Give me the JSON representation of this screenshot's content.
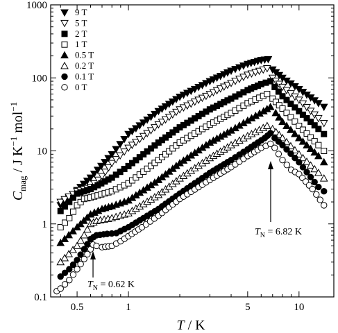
{
  "chart_data": {
    "type": "scatter",
    "x_scale": "log",
    "y_scale": "log",
    "xlim": [
      0.35,
      16
    ],
    "ylim": [
      0.1,
      1000
    ],
    "grid": false,
    "legend_position": "top-left",
    "x_ticks": [
      {
        "value": 0.5,
        "label": "0.5"
      },
      {
        "value": 1,
        "label": "1"
      },
      {
        "value": 5,
        "label": "5"
      },
      {
        "value": 10,
        "label": "10"
      }
    ],
    "y_ticks": [
      {
        "value": 0.1,
        "label": "0.1"
      },
      {
        "value": 1,
        "label": "1"
      },
      {
        "value": 10,
        "label": "10"
      },
      {
        "value": 100,
        "label": "100"
      },
      {
        "value": 1000,
        "label": "1000"
      }
    ],
    "xlabel": {
      "var": "T",
      "unit": " /  K"
    },
    "ylabel": {
      "var": "C",
      "sub": "mag",
      "unit1": " /  J K",
      "sup1": "−1",
      "unit2": " mol",
      "sup2": "−1"
    },
    "series": [
      {
        "name": "9 T",
        "marker": "tri-down",
        "filled": true,
        "points": [
          [
            0.4,
            1.8
          ],
          [
            0.5,
            2.9
          ],
          [
            0.6,
            4.3
          ],
          [
            0.8,
            9
          ],
          [
            1,
            17
          ],
          [
            1.5,
            35
          ],
          [
            2,
            55
          ],
          [
            3,
            90
          ],
          [
            4,
            125
          ],
          [
            5,
            155
          ],
          [
            6,
            175
          ],
          [
            6.6,
            180
          ],
          [
            7,
            130
          ],
          [
            8,
            100
          ],
          [
            10,
            70
          ],
          [
            13,
            45
          ],
          [
            14,
            40
          ]
        ]
      },
      {
        "name": "5 T",
        "marker": "tri-down",
        "filled": false,
        "points": [
          [
            0.4,
            2
          ],
          [
            0.5,
            2.8
          ],
          [
            0.6,
            3.2
          ],
          [
            0.7,
            4.5
          ],
          [
            0.8,
            6.8
          ],
          [
            1,
            11
          ],
          [
            1.5,
            23
          ],
          [
            2,
            37
          ],
          [
            3,
            60
          ],
          [
            4,
            85
          ],
          [
            5,
            110
          ],
          [
            6.5,
            135
          ],
          [
            7,
            100
          ],
          [
            8,
            75
          ],
          [
            10,
            50
          ],
          [
            13,
            28
          ],
          [
            14,
            24
          ]
        ]
      },
      {
        "name": "2 T",
        "marker": "square",
        "filled": true,
        "points": [
          [
            0.4,
            1.5
          ],
          [
            0.45,
            2
          ],
          [
            0.5,
            2.6
          ],
          [
            0.6,
            3
          ],
          [
            0.8,
            4.3
          ],
          [
            1,
            6.2
          ],
          [
            1.5,
            13
          ],
          [
            2,
            21
          ],
          [
            3,
            37
          ],
          [
            4,
            52
          ],
          [
            5,
            68
          ],
          [
            6,
            82
          ],
          [
            6.8,
            90
          ],
          [
            7.2,
            75
          ],
          [
            8,
            56
          ],
          [
            10,
            35
          ],
          [
            13,
            20
          ],
          [
            14,
            17
          ]
        ]
      },
      {
        "name": "1 T",
        "marker": "square",
        "filled": false,
        "points": [
          [
            0.4,
            0.9
          ],
          [
            0.45,
            1.2
          ],
          [
            0.5,
            1.8
          ],
          [
            0.55,
            2.2
          ],
          [
            0.6,
            2.3
          ],
          [
            0.8,
            2.8
          ],
          [
            1,
            3.6
          ],
          [
            1.5,
            7.5
          ],
          [
            2,
            13
          ],
          [
            3,
            23
          ],
          [
            4,
            33
          ],
          [
            5,
            45
          ],
          [
            6.5,
            60
          ],
          [
            7,
            52
          ],
          [
            8,
            38
          ],
          [
            10,
            22
          ],
          [
            13,
            12
          ],
          [
            14,
            10
          ]
        ]
      },
      {
        "name": "0.5 T",
        "marker": "tri-up",
        "filled": true,
        "points": [
          [
            0.4,
            0.55
          ],
          [
            0.5,
            0.9
          ],
          [
            0.6,
            1.35
          ],
          [
            0.7,
            1.6
          ],
          [
            0.8,
            1.75
          ],
          [
            1,
            2.1
          ],
          [
            1.5,
            4
          ],
          [
            2,
            6.8
          ],
          [
            3,
            13
          ],
          [
            4,
            19
          ],
          [
            5,
            26
          ],
          [
            6.2,
            35
          ],
          [
            6.8,
            40
          ],
          [
            7.3,
            33
          ],
          [
            8,
            25
          ],
          [
            10,
            15
          ],
          [
            13,
            8.5
          ],
          [
            14,
            7
          ]
        ]
      },
      {
        "name": "0.2 T",
        "marker": "tri-up",
        "filled": false,
        "points": [
          [
            0.4,
            0.3
          ],
          [
            0.5,
            0.5
          ],
          [
            0.55,
            0.7
          ],
          [
            0.6,
            1
          ],
          [
            0.65,
            1.1
          ],
          [
            0.8,
            1.2
          ],
          [
            1,
            1.4
          ],
          [
            1.5,
            2.5
          ],
          [
            2,
            4.2
          ],
          [
            3,
            8
          ],
          [
            4,
            12
          ],
          [
            5,
            16
          ],
          [
            6.5,
            22
          ],
          [
            7,
            20
          ],
          [
            8,
            15
          ],
          [
            10,
            9
          ],
          [
            13,
            5
          ],
          [
            14,
            4.2
          ]
        ]
      },
      {
        "name": "0.1 T",
        "marker": "circle",
        "filled": true,
        "points": [
          [
            0.4,
            0.19
          ],
          [
            0.45,
            0.24
          ],
          [
            0.5,
            0.32
          ],
          [
            0.55,
            0.45
          ],
          [
            0.6,
            0.62
          ],
          [
            0.65,
            0.7
          ],
          [
            0.75,
            0.73
          ],
          [
            0.85,
            0.75
          ],
          [
            1,
            0.9
          ],
          [
            1.5,
            1.6
          ],
          [
            2,
            2.6
          ],
          [
            3,
            5
          ],
          [
            4,
            7.5
          ],
          [
            5,
            10.5
          ],
          [
            6.3,
            15
          ],
          [
            6.8,
            17.5
          ],
          [
            7.2,
            15
          ],
          [
            8,
            12
          ],
          [
            10,
            7
          ],
          [
            13,
            3.2
          ],
          [
            14,
            2.8
          ]
        ]
      },
      {
        "name": "0 T",
        "marker": "circle",
        "filled": false,
        "points": [
          [
            0.38,
            0.12
          ],
          [
            0.4,
            0.13
          ],
          [
            0.45,
            0.17
          ],
          [
            0.5,
            0.24
          ],
          [
            0.55,
            0.33
          ],
          [
            0.6,
            0.45
          ],
          [
            0.62,
            0.52
          ],
          [
            0.65,
            0.5
          ],
          [
            0.7,
            0.48
          ],
          [
            0.8,
            0.5
          ],
          [
            0.9,
            0.58
          ],
          [
            1,
            0.68
          ],
          [
            1.2,
            0.9
          ],
          [
            1.5,
            1.3
          ],
          [
            2,
            2.2
          ],
          [
            3,
            4
          ],
          [
            4,
            6
          ],
          [
            5,
            8.5
          ],
          [
            6,
            11
          ],
          [
            6.8,
            12.5
          ],
          [
            7.2,
            11
          ],
          [
            8,
            7.5
          ],
          [
            9,
            5.5
          ],
          [
            10,
            4.8
          ],
          [
            12,
            3
          ],
          [
            14,
            1.8
          ]
        ]
      }
    ],
    "annotations": [
      {
        "var": "T",
        "sub": "N",
        "text": " = 0.62 K",
        "x": 0.62
      },
      {
        "var": "T",
        "sub": "N",
        "text": " = 6.82 K",
        "x": 6.82
      }
    ]
  }
}
